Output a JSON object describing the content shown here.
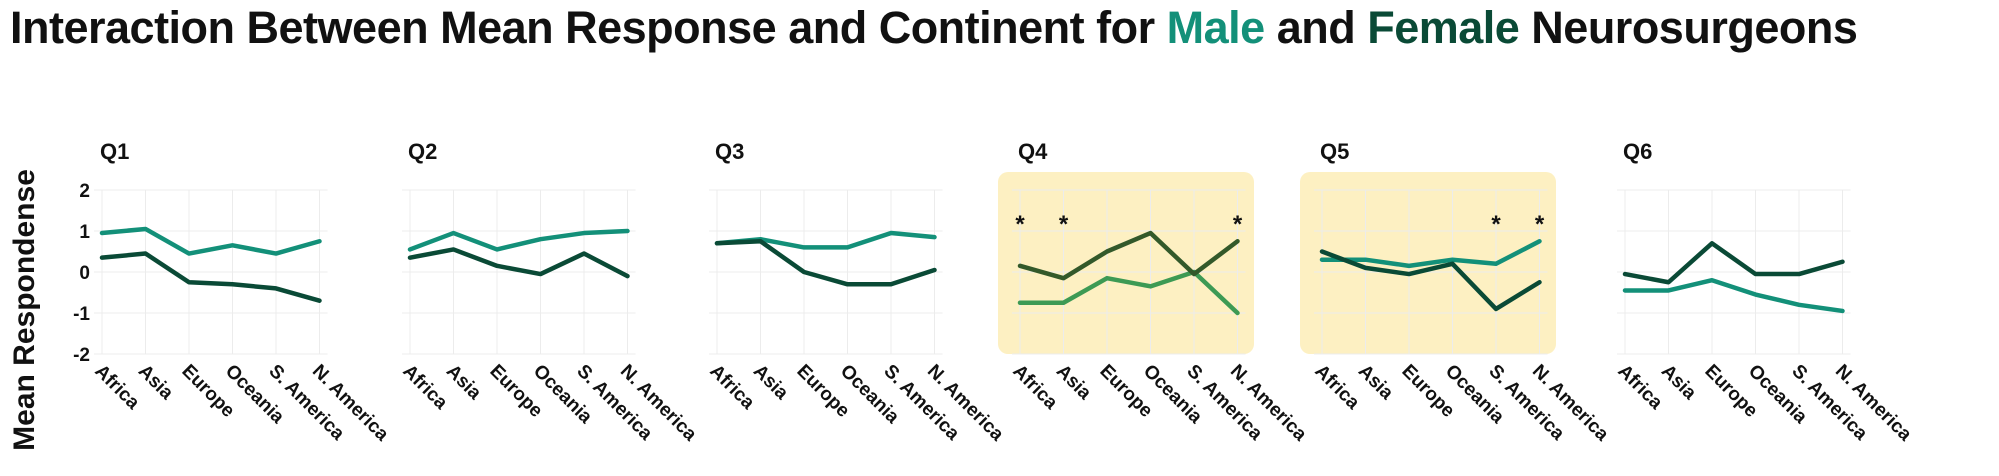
{
  "title": {
    "prefix": "Interaction Between Mean Response and Continent for ",
    "male_word": "Male",
    "middle": " and ",
    "female_word": "Female",
    "suffix": " Neurosurgeons"
  },
  "colors": {
    "male": "#139079",
    "female": "#0a4a36",
    "highlight_bg": "#fdf0c2",
    "q4_male": "#3d9a54",
    "q4_female": "#33592a",
    "grid": "#ececec"
  },
  "chart_data": {
    "type": "line",
    "ylabel": "Mean Respondense",
    "ylim": [
      -2,
      2
    ],
    "yticks": [
      "2",
      "1",
      "0",
      "-1",
      "-2"
    ],
    "categories": [
      "Africa",
      "Asia",
      "Europe",
      "Oceania",
      "S. America",
      "N. America"
    ],
    "grid": true,
    "panels": [
      {
        "label": "Q1",
        "highlight": false,
        "stars": [],
        "series": [
          {
            "name": "Male",
            "values": [
              0.95,
              1.05,
              0.45,
              0.65,
              0.45,
              0.75
            ]
          },
          {
            "name": "Female",
            "values": [
              0.35,
              0.45,
              -0.25,
              -0.3,
              -0.4,
              -0.7
            ]
          }
        ]
      },
      {
        "label": "Q2",
        "highlight": false,
        "stars": [],
        "series": [
          {
            "name": "Male",
            "values": [
              0.55,
              0.95,
              0.55,
              0.8,
              0.95,
              1.0
            ]
          },
          {
            "name": "Female",
            "values": [
              0.35,
              0.55,
              0.15,
              -0.05,
              0.45,
              -0.1
            ]
          }
        ]
      },
      {
        "label": "Q3",
        "highlight": false,
        "stars": [],
        "series": [
          {
            "name": "Male",
            "values": [
              0.7,
              0.8,
              0.6,
              0.6,
              0.95,
              0.85
            ]
          },
          {
            "name": "Female",
            "values": [
              0.7,
              0.75,
              0.0,
              -0.3,
              -0.3,
              0.05
            ]
          }
        ]
      },
      {
        "label": "Q4",
        "highlight": true,
        "stars": [
          "*",
          "*",
          "",
          "",
          "",
          "*"
        ],
        "series": [
          {
            "name": "Male",
            "values": [
              -0.75,
              -0.75,
              -0.15,
              -0.35,
              0.0,
              -1.0
            ]
          },
          {
            "name": "Female",
            "values": [
              0.15,
              -0.15,
              0.5,
              0.95,
              -0.05,
              0.75
            ]
          }
        ]
      },
      {
        "label": "Q5",
        "highlight": true,
        "stars": [
          "",
          "",
          "",
          "",
          "*",
          "*"
        ],
        "series": [
          {
            "name": "Male",
            "values": [
              0.3,
              0.3,
              0.15,
              0.3,
              0.2,
              0.75
            ]
          },
          {
            "name": "Female",
            "values": [
              0.5,
              0.1,
              -0.05,
              0.2,
              -0.9,
              -0.25
            ]
          }
        ]
      },
      {
        "label": "Q6",
        "highlight": false,
        "stars": [],
        "series": [
          {
            "name": "Male",
            "values": [
              -0.45,
              -0.45,
              -0.2,
              -0.55,
              -0.8,
              -0.95
            ]
          },
          {
            "name": "Female",
            "values": [
              -0.05,
              -0.25,
              0.7,
              -0.05,
              -0.05,
              0.25
            ]
          }
        ]
      }
    ]
  }
}
